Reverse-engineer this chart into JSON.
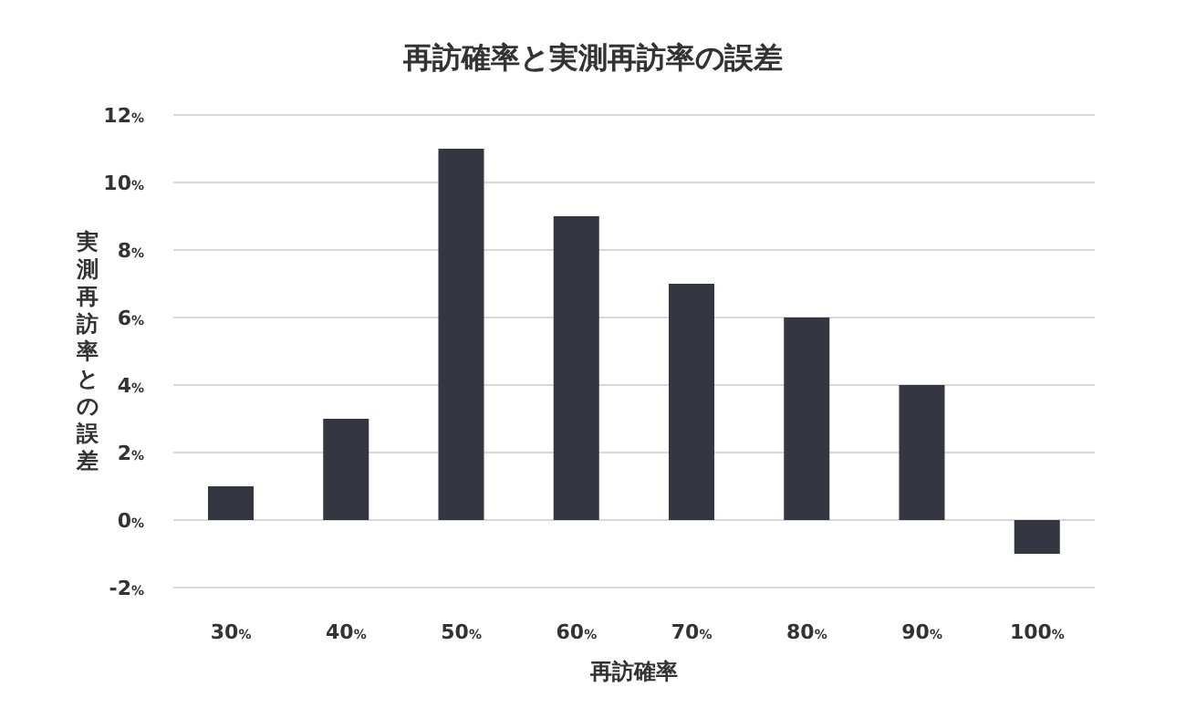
{
  "chart_data": {
    "type": "bar",
    "title": "再訪確率と実測再訪率の誤差",
    "xlabel": "再訪確率",
    "ylabel": "実測再訪率との誤差",
    "categories": [
      "30%",
      "40%",
      "50%",
      "60%",
      "70%",
      "80%",
      "90%",
      "100%"
    ],
    "values": [
      1,
      3,
      11,
      9,
      7,
      6,
      4,
      -1
    ],
    "color": "#343741",
    "ylim": [
      -2,
      12
    ],
    "yticks": [
      {
        "value": -2,
        "label": "-2%"
      },
      {
        "value": 0,
        "label": "0%"
      },
      {
        "value": 2,
        "label": "2%"
      },
      {
        "value": 4,
        "label": "4%"
      },
      {
        "value": 6,
        "label": "6%"
      },
      {
        "value": 8,
        "label": "8%"
      },
      {
        "value": 10,
        "label": "10%"
      },
      {
        "value": 12,
        "label": "12%"
      }
    ],
    "grid": "y",
    "legend": false
  }
}
